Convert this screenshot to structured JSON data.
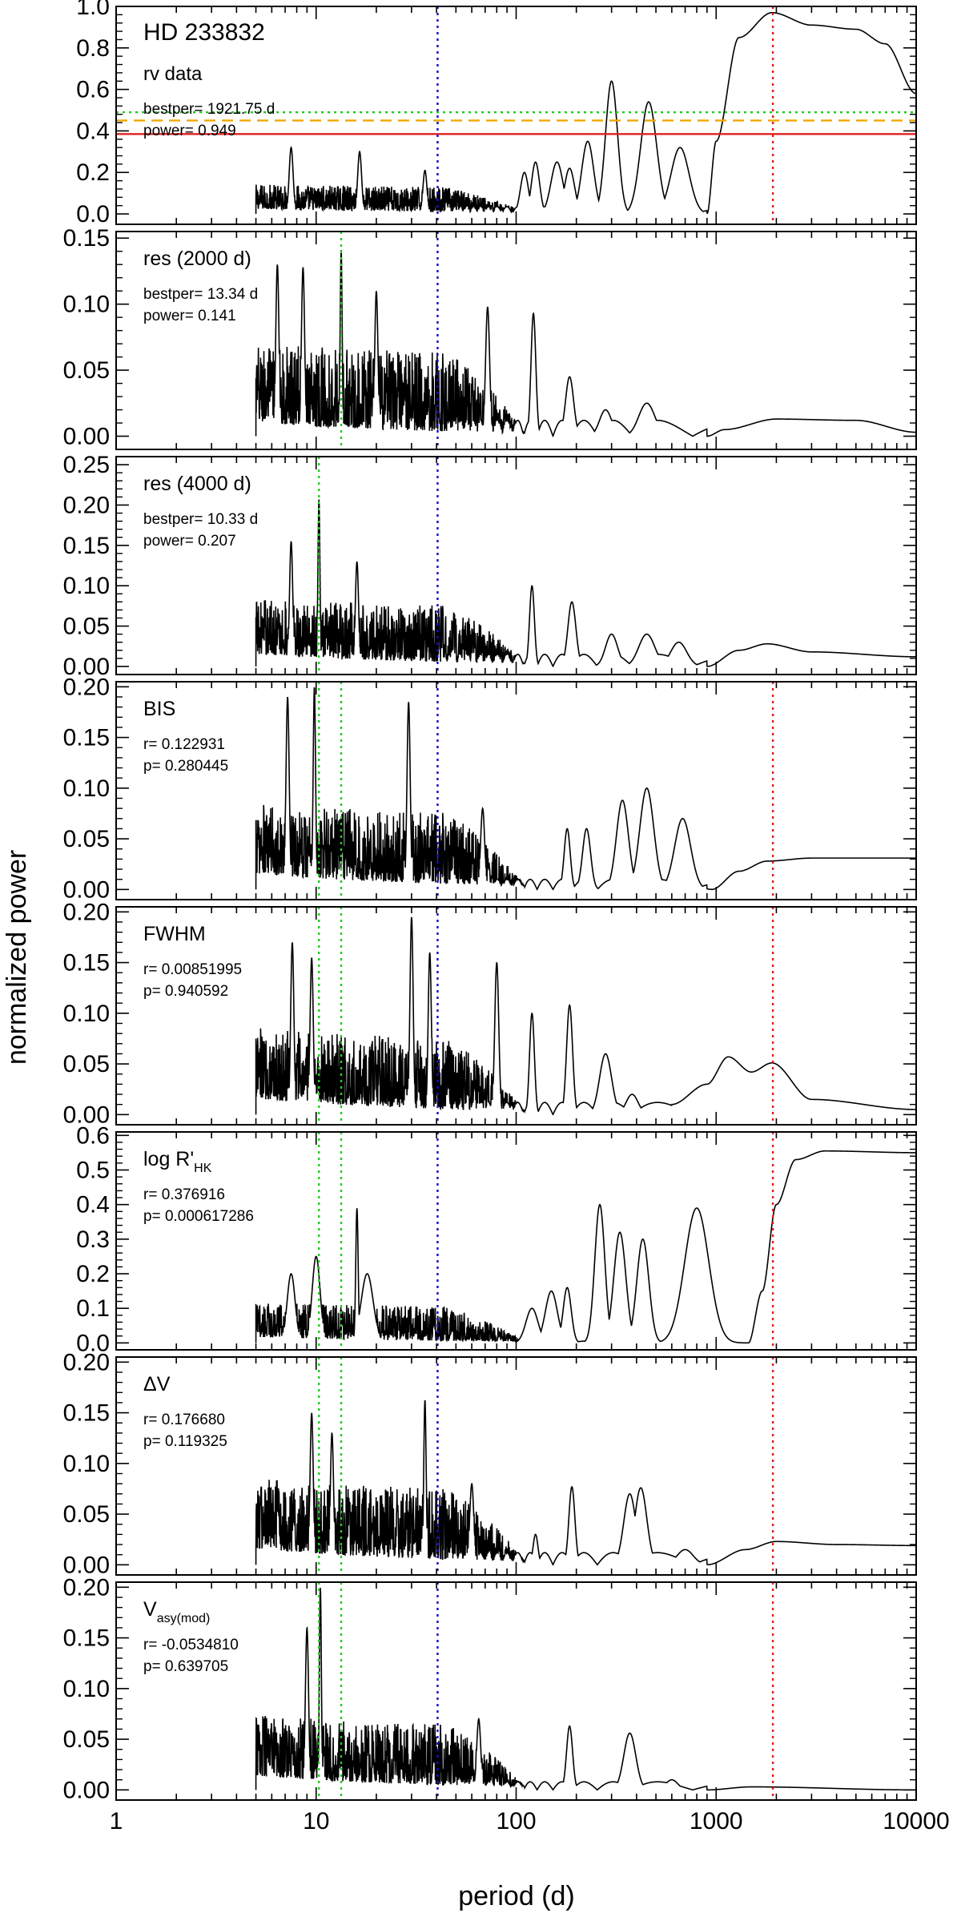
{
  "figure": {
    "xlabel": "period (d)",
    "ylabel": "normalized power"
  },
  "chart_data": {
    "type": "line",
    "x_scale": "log",
    "xlim": [
      1,
      10000
    ],
    "x_ticks": [
      {
        "value": 1,
        "label": "1"
      },
      {
        "value": 10,
        "label": "10"
      },
      {
        "value": 100,
        "label": "100"
      },
      {
        "value": 1000,
        "label": "1000"
      },
      {
        "value": 10000,
        "label": "10000"
      }
    ],
    "colors": {
      "line": "#000000",
      "blue": "#1010d0",
      "green": "#22cc22",
      "red": "#e02020",
      "orange": "#f0a800"
    },
    "global_vlines": [
      {
        "x": 40.5,
        "color": "#1010d0",
        "style": "dotted"
      }
    ],
    "panels": [
      {
        "id": "rv",
        "title": "HD 233832",
        "label": "rv data",
        "label_sub": "",
        "info": [
          "bestper= 1921.75 d",
          "power= 0.949"
        ],
        "ylim": [
          -0.05,
          1.0
        ],
        "yticks": [
          0.0,
          0.2,
          0.4,
          0.6,
          0.8,
          1.0
        ],
        "yticklabels": [
          "0.0",
          "0.2",
          "0.4",
          "0.6",
          "0.8",
          "1.0"
        ],
        "vlines": [
          {
            "x": 1921.75,
            "color": "#e02020",
            "style": "dotted"
          }
        ],
        "hlines": [
          {
            "y": 0.49,
            "color": "#22cc22",
            "style": "dotted"
          },
          {
            "y": 0.45,
            "color": "#f0a800",
            "style": "dashed"
          },
          {
            "y": 0.385,
            "color": "#e02020",
            "style": "solid"
          }
        ],
        "noise": {
          "level": 0.07,
          "amp": 0.12,
          "fall": 0.035
        },
        "peaks": [
          {
            "p": 7.5,
            "h": 0.32,
            "w": 0.01
          },
          {
            "p": 16.5,
            "h": 0.3,
            "w": 0.01
          },
          {
            "p": 35,
            "h": 0.21,
            "w": 0.01
          },
          {
            "p": 110,
            "h": 0.2,
            "w": 0.02
          },
          {
            "p": 125,
            "h": 0.25,
            "w": 0.02
          },
          {
            "p": 160,
            "h": 0.25,
            "w": 0.03
          },
          {
            "p": 185,
            "h": 0.22,
            "w": 0.025
          },
          {
            "p": 228,
            "h": 0.35,
            "w": 0.03
          },
          {
            "p": 300,
            "h": 0.64,
            "w": 0.03
          },
          {
            "p": 460,
            "h": 0.54,
            "w": 0.04
          },
          {
            "p": 660,
            "h": 0.32,
            "w": 0.045
          }
        ],
        "trend": [
          [
            900,
            0.0
          ],
          [
            1000,
            0.35
          ],
          [
            1300,
            0.85
          ],
          [
            1900,
            0.97
          ],
          [
            3000,
            0.91
          ],
          [
            5000,
            0.89
          ],
          [
            7000,
            0.82
          ],
          [
            10000,
            0.58
          ]
        ]
      },
      {
        "id": "res2000",
        "title": "",
        "label": "res (2000 d)",
        "label_sub": "",
        "info": [
          "bestper= 13.34 d",
          "power= 0.141"
        ],
        "ylim": [
          -0.01,
          0.155
        ],
        "yticks": [
          0.0,
          0.05,
          0.1,
          0.15
        ],
        "yticklabels": [
          "0.00",
          "0.05",
          "0.10",
          "0.15"
        ],
        "vlines": [
          {
            "x": 13.34,
            "color": "#22cc22",
            "style": "dotted"
          }
        ],
        "hlines": [],
        "noise": {
          "level": 0.03,
          "amp": 0.06,
          "fall": 0.012
        },
        "peaks": [
          {
            "p": 13.34,
            "h": 0.141,
            "w": 0.005
          },
          {
            "p": 6.4,
            "h": 0.13,
            "w": 0.008
          },
          {
            "p": 8.6,
            "h": 0.128,
            "w": 0.008
          },
          {
            "p": 20,
            "h": 0.11,
            "w": 0.008
          },
          {
            "p": 72,
            "h": 0.098,
            "w": 0.01
          },
          {
            "p": 122,
            "h": 0.093,
            "w": 0.012
          },
          {
            "p": 185,
            "h": 0.045,
            "w": 0.02
          },
          {
            "p": 280,
            "h": 0.02,
            "w": 0.03
          },
          {
            "p": 450,
            "h": 0.025,
            "w": 0.04
          }
        ],
        "trend": [
          [
            900,
            0.0
          ],
          [
            1100,
            0.005
          ],
          [
            2000,
            0.013
          ],
          [
            5000,
            0.012
          ],
          [
            10000,
            0.003
          ]
        ]
      },
      {
        "id": "res4000",
        "title": "",
        "label": "res (4000 d)",
        "label_sub": "",
        "info": [
          "bestper= 10.33 d",
          "power= 0.207"
        ],
        "ylim": [
          -0.01,
          0.26
        ],
        "yticks": [
          0.0,
          0.05,
          0.1,
          0.15,
          0.2,
          0.25
        ],
        "yticklabels": [
          "0.00",
          "0.05",
          "0.10",
          "0.15",
          "0.20",
          "0.25"
        ],
        "vlines": [
          {
            "x": 10.33,
            "color": "#22cc22",
            "style": "dotted"
          }
        ],
        "hlines": [],
        "noise": {
          "level": 0.045,
          "amp": 0.07,
          "fall": 0.015
        },
        "peaks": [
          {
            "p": 10.33,
            "h": 0.207,
            "w": 0.005
          },
          {
            "p": 7.5,
            "h": 0.155,
            "w": 0.008
          },
          {
            "p": 16,
            "h": 0.13,
            "w": 0.008
          },
          {
            "p": 120,
            "h": 0.1,
            "w": 0.012
          },
          {
            "p": 190,
            "h": 0.08,
            "w": 0.02
          },
          {
            "p": 300,
            "h": 0.04,
            "w": 0.03
          },
          {
            "p": 450,
            "h": 0.04,
            "w": 0.04
          },
          {
            "p": 650,
            "h": 0.03,
            "w": 0.04
          }
        ],
        "trend": [
          [
            900,
            0.0
          ],
          [
            1300,
            0.02
          ],
          [
            1800,
            0.028
          ],
          [
            3000,
            0.018
          ],
          [
            10000,
            0.012
          ]
        ]
      },
      {
        "id": "bis",
        "title": "",
        "label": "BIS",
        "label_sub": "",
        "info": [
          "r= 0.122931",
          "p= 0.280445"
        ],
        "ylim": [
          -0.01,
          0.205
        ],
        "yticks": [
          0.0,
          0.05,
          0.1,
          0.15,
          0.2
        ],
        "yticklabels": [
          "0.00",
          "0.05",
          "0.10",
          "0.15",
          "0.20"
        ],
        "vlines": [
          {
            "x": 10.33,
            "color": "#22cc22",
            "style": "dotted"
          },
          {
            "x": 13.34,
            "color": "#22cc22",
            "style": "dotted"
          },
          {
            "x": 1921.75,
            "color": "#e02020",
            "style": "dotted"
          }
        ],
        "hlines": [],
        "noise": {
          "level": 0.045,
          "amp": 0.07,
          "fall": 0.01
        },
        "peaks": [
          {
            "p": 9.8,
            "h": 0.2,
            "w": 0.006
          },
          {
            "p": 7.2,
            "h": 0.19,
            "w": 0.008
          },
          {
            "p": 29,
            "h": 0.185,
            "w": 0.008
          },
          {
            "p": 68,
            "h": 0.08,
            "w": 0.01
          },
          {
            "p": 180,
            "h": 0.06,
            "w": 0.015
          },
          {
            "p": 225,
            "h": 0.06,
            "w": 0.02
          },
          {
            "p": 340,
            "h": 0.088,
            "w": 0.03
          },
          {
            "p": 450,
            "h": 0.1,
            "w": 0.035
          },
          {
            "p": 680,
            "h": 0.07,
            "w": 0.04
          }
        ],
        "trend": [
          [
            950,
            0.0
          ],
          [
            1300,
            0.018
          ],
          [
            1800,
            0.028
          ],
          [
            3000,
            0.031
          ],
          [
            10000,
            0.031
          ]
        ]
      },
      {
        "id": "fwhm",
        "title": "",
        "label": "FWHM",
        "label_sub": "",
        "info": [
          "r= 0.00851995",
          "p= 0.940592"
        ],
        "ylim": [
          -0.01,
          0.205
        ],
        "yticks": [
          0.0,
          0.05,
          0.1,
          0.15,
          0.2
        ],
        "yticklabels": [
          "0.00",
          "0.05",
          "0.10",
          "0.15",
          "0.20"
        ],
        "vlines": [
          {
            "x": 10.33,
            "color": "#22cc22",
            "style": "dotted"
          },
          {
            "x": 13.34,
            "color": "#22cc22",
            "style": "dotted"
          },
          {
            "x": 1921.75,
            "color": "#e02020",
            "style": "dotted"
          }
        ],
        "hlines": [],
        "noise": {
          "level": 0.045,
          "amp": 0.07,
          "fall": 0.012
        },
        "peaks": [
          {
            "p": 7.6,
            "h": 0.17,
            "w": 0.008
          },
          {
            "p": 9.5,
            "h": 0.155,
            "w": 0.008
          },
          {
            "p": 30,
            "h": 0.195,
            "w": 0.008
          },
          {
            "p": 37,
            "h": 0.16,
            "w": 0.008
          },
          {
            "p": 80,
            "h": 0.15,
            "w": 0.01
          },
          {
            "p": 120,
            "h": 0.1,
            "w": 0.012
          },
          {
            "p": 185,
            "h": 0.108,
            "w": 0.015
          },
          {
            "p": 280,
            "h": 0.06,
            "w": 0.03
          },
          {
            "p": 380,
            "h": 0.02,
            "w": 0.03
          }
        ],
        "trend": [
          [
            600,
            0.01
          ],
          [
            900,
            0.03
          ],
          [
            1150,
            0.057
          ],
          [
            1500,
            0.042
          ],
          [
            1900,
            0.051
          ],
          [
            3000,
            0.015
          ],
          [
            10000,
            0.005
          ]
        ]
      },
      {
        "id": "rhk",
        "title": "",
        "label": "log R'",
        "label_sub": "HK",
        "info": [
          "r= 0.376916",
          "p= 0.000617286"
        ],
        "ylim": [
          -0.02,
          0.61
        ],
        "yticks": [
          0.0,
          0.1,
          0.2,
          0.3,
          0.4,
          0.5,
          0.6
        ],
        "yticklabels": [
          "0.0",
          "0.1",
          "0.2",
          "0.3",
          "0.4",
          "0.5",
          "0.6"
        ],
        "vlines": [
          {
            "x": 10.33,
            "color": "#22cc22",
            "style": "dotted"
          },
          {
            "x": 13.34,
            "color": "#22cc22",
            "style": "dotted"
          },
          {
            "x": 1921.75,
            "color": "#e02020",
            "style": "dotted"
          }
        ],
        "hlines": [],
        "noise": {
          "level": 0.05,
          "amp": 0.1,
          "fall": 0.005
        },
        "peaks": [
          {
            "p": 16,
            "h": 0.39,
            "w": 0.006
          },
          {
            "p": 10,
            "h": 0.25,
            "w": 0.02
          },
          {
            "p": 7.5,
            "h": 0.2,
            "w": 0.02
          },
          {
            "p": 18,
            "h": 0.2,
            "w": 0.03
          },
          {
            "p": 120,
            "h": 0.1,
            "w": 0.03
          },
          {
            "p": 150,
            "h": 0.15,
            "w": 0.03
          },
          {
            "p": 180,
            "h": 0.16,
            "w": 0.02
          },
          {
            "p": 262,
            "h": 0.4,
            "w": 0.025
          },
          {
            "p": 330,
            "h": 0.32,
            "w": 0.03
          },
          {
            "p": 430,
            "h": 0.3,
            "w": 0.03
          },
          {
            "p": 800,
            "h": 0.39,
            "w": 0.06
          }
        ],
        "trend": [
          [
            1450,
            0.0
          ],
          [
            1700,
            0.15
          ],
          [
            2000,
            0.4
          ],
          [
            2500,
            0.53
          ],
          [
            3500,
            0.555
          ],
          [
            10000,
            0.55
          ]
        ]
      },
      {
        "id": "dv",
        "title": "",
        "label": "ΔV",
        "label_sub": "",
        "info": [
          "r= 0.176680",
          "p= 0.119325"
        ],
        "ylim": [
          -0.01,
          0.205
        ],
        "yticks": [
          0.0,
          0.05,
          0.1,
          0.15,
          0.2
        ],
        "yticklabels": [
          "0.00",
          "0.05",
          "0.10",
          "0.15",
          "0.20"
        ],
        "vlines": [
          {
            "x": 10.33,
            "color": "#22cc22",
            "style": "dotted"
          },
          {
            "x": 13.34,
            "color": "#22cc22",
            "style": "dotted"
          },
          {
            "x": 1921.75,
            "color": "#e02020",
            "style": "dotted"
          }
        ],
        "hlines": [],
        "noise": {
          "level": 0.045,
          "amp": 0.07,
          "fall": 0.012
        },
        "peaks": [
          {
            "p": 35,
            "h": 0.163,
            "w": 0.006
          },
          {
            "p": 9.5,
            "h": 0.15,
            "w": 0.008
          },
          {
            "p": 12,
            "h": 0.13,
            "w": 0.008
          },
          {
            "p": 60,
            "h": 0.08,
            "w": 0.01
          },
          {
            "p": 125,
            "h": 0.03,
            "w": 0.012
          },
          {
            "p": 190,
            "h": 0.077,
            "w": 0.015
          },
          {
            "p": 370,
            "h": 0.07,
            "w": 0.03
          },
          {
            "p": 420,
            "h": 0.076,
            "w": 0.03
          },
          {
            "p": 700,
            "h": 0.015,
            "w": 0.04
          }
        ],
        "trend": [
          [
            900,
            0.0
          ],
          [
            1400,
            0.015
          ],
          [
            2000,
            0.023
          ],
          [
            4000,
            0.02
          ],
          [
            10000,
            0.019
          ]
        ]
      },
      {
        "id": "vasy",
        "title": "",
        "label": "V",
        "label_sub": "asy(mod)",
        "info": [
          "r= -0.0534810",
          "p= 0.639705"
        ],
        "ylim": [
          -0.01,
          0.205
        ],
        "yticks": [
          0.0,
          0.05,
          0.1,
          0.15,
          0.2
        ],
        "yticklabels": [
          "0.00",
          "0.05",
          "0.10",
          "0.15",
          "0.20"
        ],
        "vlines": [
          {
            "x": 10.33,
            "color": "#22cc22",
            "style": "dotted"
          },
          {
            "x": 13.34,
            "color": "#22cc22",
            "style": "dotted"
          },
          {
            "x": 1921.75,
            "color": "#e02020",
            "style": "dotted"
          }
        ],
        "hlines": [],
        "noise": {
          "level": 0.04,
          "amp": 0.06,
          "fall": 0.008
        },
        "peaks": [
          {
            "p": 10.5,
            "h": 0.2,
            "w": 0.005
          },
          {
            "p": 9,
            "h": 0.16,
            "w": 0.008
          },
          {
            "p": 65,
            "h": 0.07,
            "w": 0.01
          },
          {
            "p": 185,
            "h": 0.063,
            "w": 0.015
          },
          {
            "p": 370,
            "h": 0.056,
            "w": 0.03
          },
          {
            "p": 600,
            "h": 0.01,
            "w": 0.03
          }
        ],
        "trend": [
          [
            900,
            0.0
          ],
          [
            1500,
            0.003
          ],
          [
            10000,
            0.0
          ]
        ]
      }
    ]
  }
}
